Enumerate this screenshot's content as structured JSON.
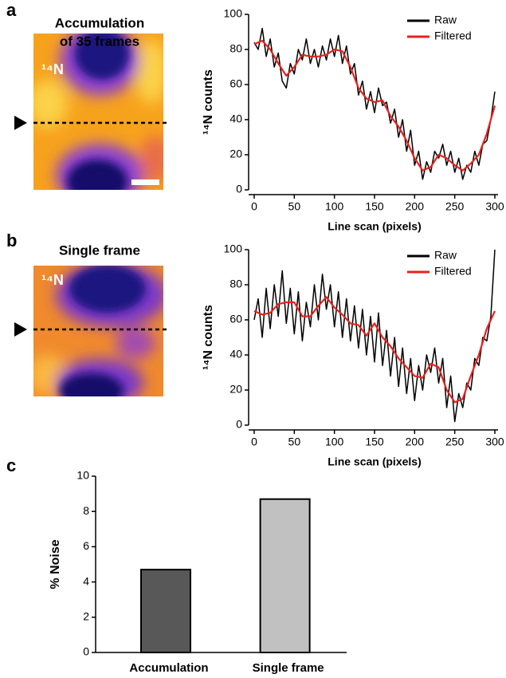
{
  "panels": [
    {
      "label": "a",
      "image_title": [
        "Accumulation",
        "of 35 frames"
      ],
      "image_label": "¹⁴N"
    },
    {
      "label": "b",
      "image_title": [
        "Single frame"
      ],
      "image_label": "¹⁴N"
    },
    {
      "label": "c"
    }
  ],
  "chart_data": [
    {
      "type": "line",
      "xlabel": "Line scan (pixels)",
      "ylabel": "¹⁴N counts",
      "xlim": [
        0,
        300
      ],
      "xticks": [
        0,
        50,
        100,
        150,
        200,
        250,
        300
      ],
      "ylim": [
        0,
        100
      ],
      "yticks": [
        0,
        20,
        40,
        60,
        80,
        100
      ],
      "legend": "upper right",
      "series": [
        {
          "name": "Raw",
          "color": "#000000",
          "x": [
            0,
            5,
            10,
            15,
            20,
            25,
            30,
            35,
            40,
            45,
            50,
            55,
            60,
            65,
            70,
            75,
            80,
            85,
            90,
            95,
            100,
            105,
            110,
            115,
            120,
            125,
            130,
            135,
            140,
            145,
            150,
            155,
            160,
            165,
            170,
            175,
            180,
            185,
            190,
            195,
            200,
            205,
            210,
            215,
            220,
            225,
            230,
            235,
            240,
            245,
            250,
            255,
            260,
            265,
            270,
            275,
            280,
            285,
            290,
            295,
            300
          ],
          "values": [
            84,
            80,
            92,
            76,
            86,
            70,
            78,
            62,
            58,
            72,
            66,
            80,
            74,
            86,
            72,
            80,
            70,
            82,
            74,
            86,
            76,
            88,
            72,
            82,
            66,
            72,
            54,
            62,
            46,
            56,
            44,
            58,
            48,
            50,
            38,
            46,
            30,
            40,
            22,
            34,
            14,
            22,
            6,
            16,
            10,
            22,
            18,
            26,
            14,
            22,
            10,
            18,
            6,
            14,
            10,
            22,
            14,
            26,
            28,
            40,
            56
          ]
        },
        {
          "name": "Filtered",
          "color": "#e8211d",
          "x": [
            0,
            10,
            20,
            30,
            40,
            50,
            60,
            70,
            80,
            90,
            100,
            110,
            120,
            130,
            140,
            150,
            160,
            170,
            180,
            190,
            200,
            210,
            220,
            230,
            240,
            250,
            260,
            270,
            280,
            290,
            300
          ],
          "values": [
            83,
            85,
            80,
            72,
            65,
            70,
            77,
            76,
            76,
            77,
            80,
            79,
            70,
            58,
            52,
            50,
            51,
            42,
            36,
            28,
            18,
            11,
            13,
            20,
            18,
            14,
            11,
            15,
            20,
            32,
            48
          ]
        }
      ]
    },
    {
      "type": "line",
      "xlabel": "Line scan (pixels)",
      "ylabel": "¹⁴N counts",
      "xlim": [
        0,
        300
      ],
      "xticks": [
        0,
        50,
        100,
        150,
        200,
        250,
        300
      ],
      "ylim": [
        0,
        100
      ],
      "yticks": [
        0,
        20,
        40,
        60,
        80,
        100
      ],
      "legend": "upper right",
      "series": [
        {
          "name": "Raw",
          "color": "#000000",
          "x": [
            0,
            5,
            10,
            15,
            20,
            25,
            30,
            35,
            40,
            45,
            50,
            55,
            60,
            65,
            70,
            75,
            80,
            85,
            90,
            95,
            100,
            105,
            110,
            115,
            120,
            125,
            130,
            135,
            140,
            145,
            150,
            155,
            160,
            165,
            170,
            175,
            180,
            185,
            190,
            195,
            200,
            205,
            210,
            215,
            220,
            225,
            230,
            235,
            240,
            245,
            250,
            255,
            260,
            265,
            270,
            275,
            280,
            285,
            290,
            295,
            300
          ],
          "values": [
            60,
            72,
            50,
            78,
            55,
            80,
            62,
            88,
            58,
            78,
            52,
            76,
            48,
            70,
            56,
            80,
            60,
            86,
            66,
            80,
            56,
            76,
            50,
            72,
            48,
            68,
            44,
            66,
            40,
            62,
            36,
            64,
            34,
            54,
            28,
            50,
            22,
            44,
            18,
            38,
            14,
            34,
            20,
            40,
            30,
            44,
            24,
            38,
            10,
            28,
            2,
            18,
            10,
            24,
            20,
            38,
            34,
            50,
            48,
            62,
            100
          ]
        },
        {
          "name": "Filtered",
          "color": "#e8211d",
          "x": [
            0,
            10,
            20,
            30,
            40,
            50,
            60,
            70,
            80,
            90,
            100,
            110,
            120,
            130,
            140,
            150,
            160,
            170,
            180,
            190,
            200,
            210,
            220,
            230,
            240,
            250,
            260,
            270,
            280,
            290,
            300
          ],
          "values": [
            65,
            63,
            64,
            69,
            70,
            70,
            62,
            62,
            68,
            73,
            67,
            63,
            58,
            57,
            51,
            58,
            50,
            45,
            38,
            33,
            28,
            27,
            35,
            33,
            20,
            13,
            15,
            28,
            40,
            55,
            65
          ]
        }
      ]
    },
    {
      "type": "bar",
      "ylabel": "% Noise",
      "categories": [
        "Accumulation",
        "Single frame"
      ],
      "values": [
        4.7,
        8.7
      ],
      "colors": [
        "#575857",
        "#c0c1c0"
      ],
      "ylim": [
        0,
        10
      ],
      "yticks": [
        0,
        2,
        4,
        6,
        8,
        10
      ]
    }
  ]
}
